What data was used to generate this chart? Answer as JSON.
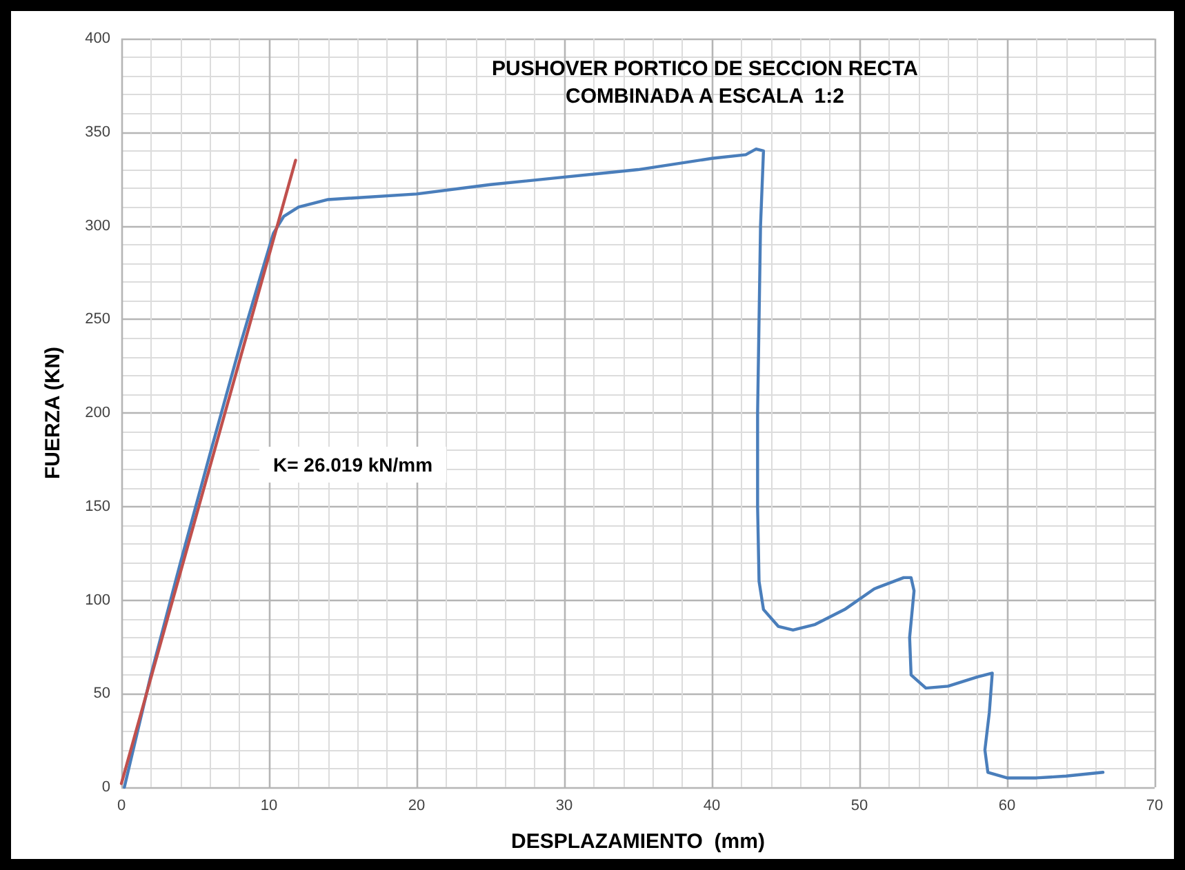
{
  "chart_data": {
    "type": "line",
    "title": "PUSHOVER PORTICO DE SECCION RECTA\nCOMBINADA A ESCALA  1:2",
    "xlabel": "DESPLAZAMIENTO  (mm)",
    "ylabel": "FUERZA (KN)",
    "annotations": [
      "K= 26.019 kN/mm"
    ],
    "series": [
      {
        "color": "#4a7ebb",
        "x": [
          0.2,
          2,
          4,
          6,
          8,
          9.5,
          10.3,
          11,
          12,
          14,
          20,
          25,
          30,
          35,
          40,
          42.3,
          43,
          43.5,
          43.3,
          43.1,
          43.1,
          43.2,
          43.5,
          44.5,
          45.5,
          47,
          49,
          51,
          53,
          53.5,
          53.7,
          53.4,
          53.5,
          54.5,
          56,
          58,
          59,
          58.8,
          58.5,
          58.7,
          60,
          62,
          64,
          66.5
        ],
        "values": [
          0,
          60,
          120,
          178,
          235,
          275,
          296,
          305,
          310,
          314,
          317,
          322,
          326,
          330,
          336,
          338,
          341,
          340,
          300,
          200,
          150,
          110,
          95,
          86,
          84,
          87,
          95,
          106,
          112,
          112,
          105,
          80,
          60,
          53,
          54,
          59,
          61,
          40,
          20,
          8,
          5,
          5,
          6,
          8
        ]
      },
      {
        "color": "#c0504d",
        "x": [
          0,
          11.8
        ],
        "values": [
          2,
          335
        ]
      }
    ],
    "xlim": [
      0,
      70
    ],
    "xticks": [
      0,
      10,
      20,
      30,
      40,
      50,
      60,
      70
    ],
    "ylim": [
      0,
      400
    ],
    "yticks": [
      0,
      50,
      100,
      150,
      200,
      250,
      300,
      350,
      400
    ],
    "grid": true,
    "marker": "none",
    "line_style": "solid"
  }
}
